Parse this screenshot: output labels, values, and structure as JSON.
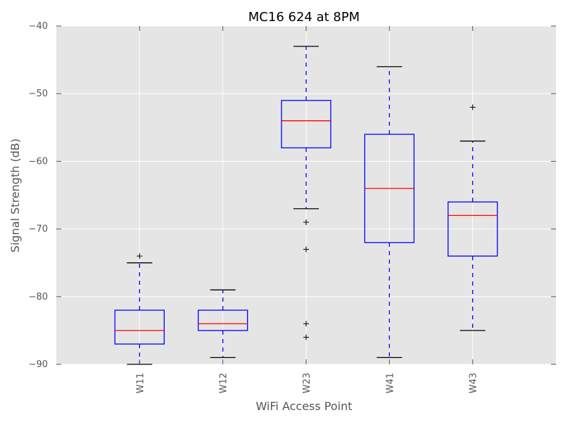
{
  "chart_data": {
    "type": "box",
    "title": "MC16 624 at 8PM",
    "xlabel": "WiFi Access Point",
    "ylabel": "Signal Strength (dB)",
    "ylim": [
      -90,
      -40
    ],
    "yticks": [
      -90,
      -80,
      -70,
      -60,
      -50,
      -40
    ],
    "ytick_labels": [
      "−90",
      "−80",
      "−70",
      "−60",
      "−50",
      "−40"
    ],
    "grid": true,
    "categories": [
      "W11",
      "W12",
      "W23",
      "W41",
      "W43"
    ],
    "boxes": [
      {
        "name": "W11",
        "whisker_low": -90,
        "q1": -87,
        "median": -85,
        "q3": -82,
        "whisker_high": -75,
        "fliers": [
          -74
        ]
      },
      {
        "name": "W12",
        "whisker_low": -89,
        "q1": -85,
        "median": -84,
        "q3": -82,
        "whisker_high": -79,
        "fliers": []
      },
      {
        "name": "W23",
        "whisker_low": -67,
        "q1": -58,
        "median": -54,
        "q3": -51,
        "whisker_high": -43,
        "fliers": [
          -69,
          -73,
          -84,
          -86
        ]
      },
      {
        "name": "W41",
        "whisker_low": -89,
        "q1": -72,
        "median": -64,
        "q3": -56,
        "whisker_high": -46,
        "fliers": []
      },
      {
        "name": "W43",
        "whisker_low": -85,
        "q1": -74,
        "median": -68,
        "q3": -66,
        "whisker_high": -57,
        "fliers": [
          -52
        ]
      }
    ],
    "colors": {
      "plot_background": "#e5e5e5",
      "grid": "#ffffff",
      "box": "#0000ff",
      "median": "#ff0000",
      "whisker": "#0000ff",
      "cap": "#000000",
      "flier": "#000000",
      "text": "#555555",
      "title": "#000000"
    }
  }
}
